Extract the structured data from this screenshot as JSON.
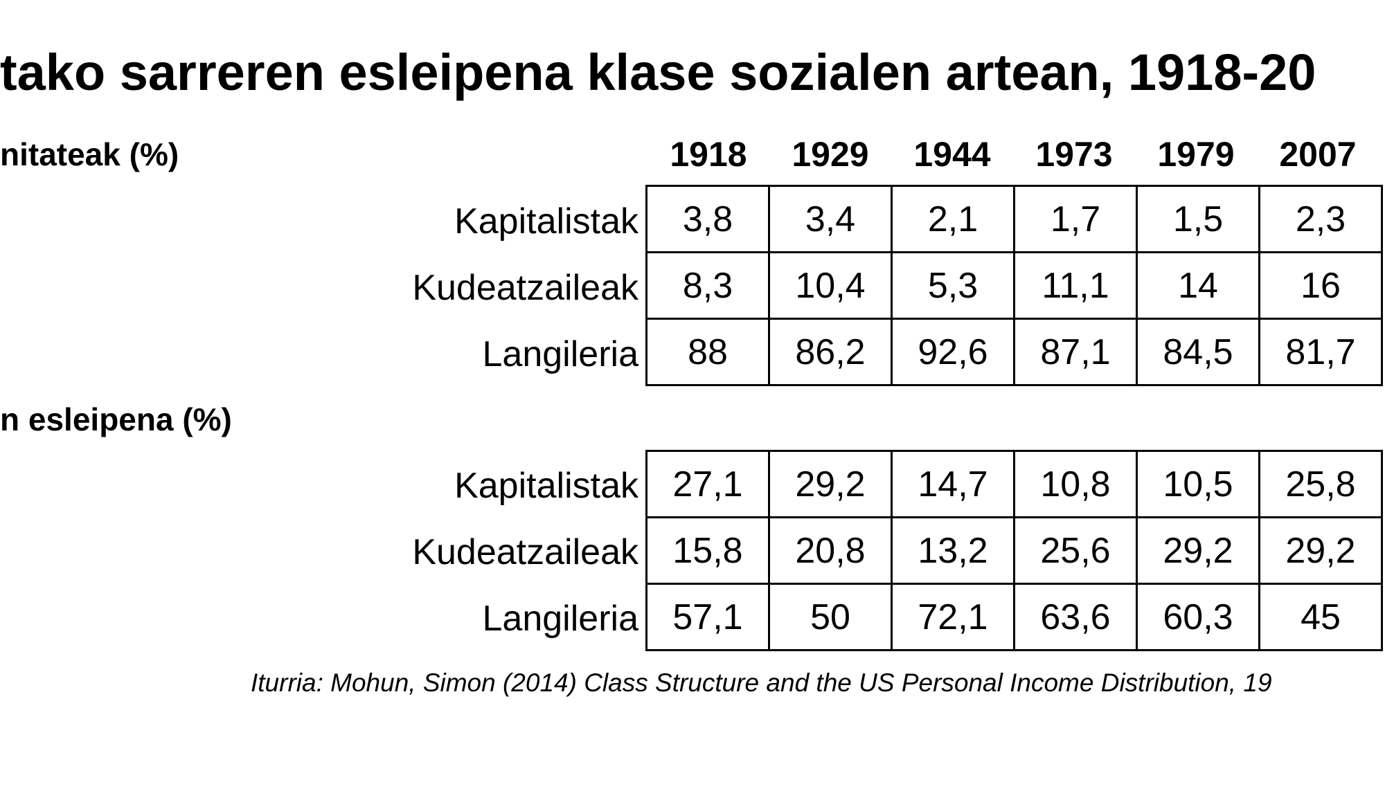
{
  "title": "tako sarreren esleipena klase sozialen artean, 1918-20",
  "section1": {
    "heading": "nitateak (%)",
    "rows": [
      {
        "label": "Kapitalistak",
        "values": [
          "3,8",
          "3,4",
          "2,1",
          "1,7",
          "1,5",
          "2,3"
        ]
      },
      {
        "label": "Kudeatzaileak",
        "values": [
          "8,3",
          "10,4",
          "5,3",
          "11,1",
          "14",
          "16"
        ]
      },
      {
        "label": "Langileria",
        "values": [
          "88",
          "86,2",
          "92,6",
          "87,1",
          "84,5",
          "81,7"
        ]
      }
    ]
  },
  "section2": {
    "heading": "n esleipena (%)",
    "rows": [
      {
        "label": "Kapitalistak",
        "values": [
          "27,1",
          "29,2",
          "14,7",
          "10,8",
          "10,5",
          "25,8"
        ]
      },
      {
        "label": "Kudeatzaileak",
        "values": [
          "15,8",
          "20,8",
          "13,2",
          "25,6",
          "29,2",
          "29,2"
        ]
      },
      {
        "label": "Langileria",
        "values": [
          "57,1",
          "50",
          "72,1",
          "63,6",
          "60,3",
          "45"
        ]
      }
    ]
  },
  "years": [
    "1918",
    "1929",
    "1944",
    "1973",
    "1979",
    "2007"
  ],
  "source": "Iturria: Mohun, Simon (2014) Class Structure and the US Personal Income Distribution, 19"
}
